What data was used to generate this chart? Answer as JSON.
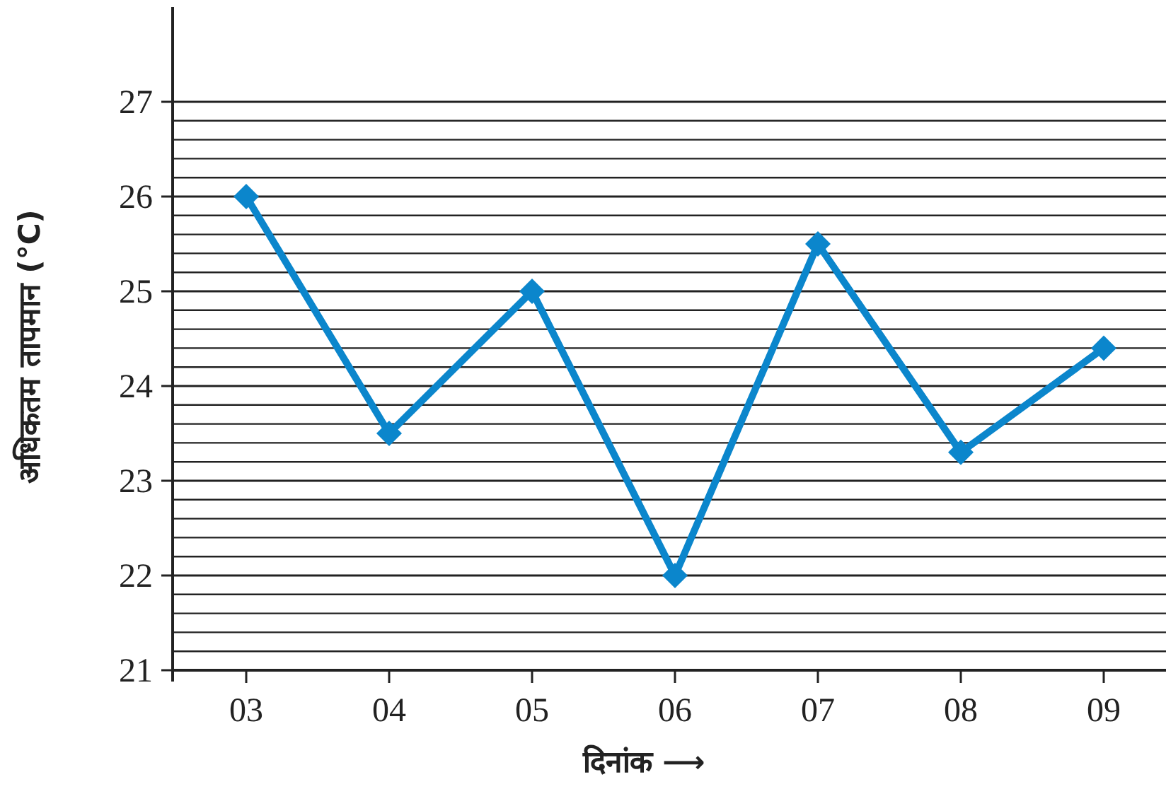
{
  "chart_data": {
    "type": "line",
    "xlabel": "दिनांक ⟶",
    "ylabel": "अधिकतम तापमान (°C)",
    "categories": [
      "03",
      "04",
      "05",
      "06",
      "07",
      "08",
      "09"
    ],
    "series": [
      {
        "color": "#0b86cc",
        "values": [
          26,
          23.5,
          25,
          22,
          25.5,
          23.3,
          24.4
        ]
      }
    ],
    "marker": "diamond",
    "line_style": "solid",
    "grid": "y",
    "ylim": [
      21,
      28
    ],
    "yticks": [
      21,
      {
        "value": 21.2,
        "label": null
      },
      {
        "value": 21.4,
        "label": null
      },
      {
        "value": 21.6,
        "label": null
      },
      {
        "value": 21.8,
        "label": null
      },
      22,
      {
        "value": 22.2,
        "label": null
      },
      {
        "value": 22.4,
        "label": null
      },
      {
        "value": 22.6,
        "label": null
      },
      {
        "value": 22.8,
        "label": null
      },
      23,
      {
        "value": 23.2,
        "label": null
      },
      {
        "value": 23.4,
        "label": null
      },
      {
        "value": 23.6,
        "label": null
      },
      {
        "value": 23.8,
        "label": null
      },
      24,
      {
        "value": 24.2,
        "label": null
      },
      {
        "value": 24.4,
        "label": null
      },
      {
        "value": 24.6,
        "label": null
      },
      {
        "value": 24.8,
        "label": null
      },
      25,
      {
        "value": 25.2,
        "label": null
      },
      {
        "value": 25.4,
        "label": null
      },
      {
        "value": 25.6,
        "label": null
      },
      {
        "value": 25.8,
        "label": null
      },
      26,
      {
        "value": 26.2,
        "label": null
      },
      {
        "value": 26.4,
        "label": null
      },
      {
        "value": 26.6,
        "label": null
      },
      {
        "value": 26.8,
        "label": null
      },
      27
    ]
  }
}
